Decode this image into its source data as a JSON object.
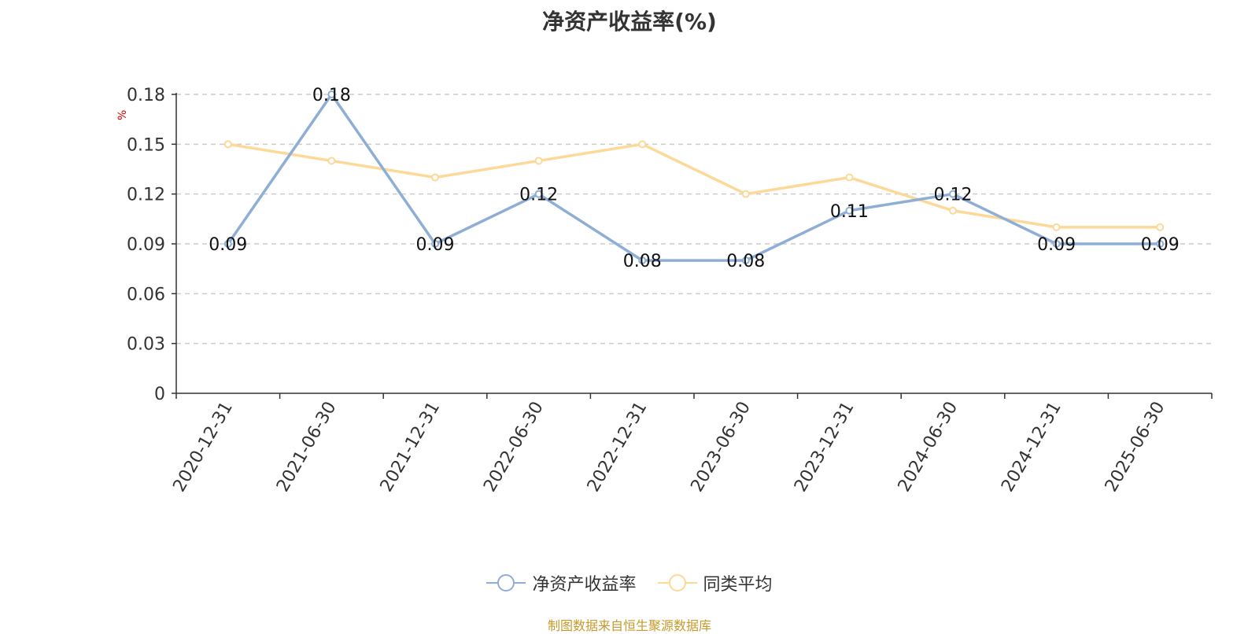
{
  "chart_data": {
    "type": "line",
    "title": "净资产收益率(%)",
    "unit_label": "%",
    "categories": [
      "2020-12-31",
      "2021-06-30",
      "2021-12-31",
      "2022-06-30",
      "2022-12-31",
      "2023-06-30",
      "2023-12-31",
      "2024-06-30",
      "2024-12-31",
      "2025-06-30"
    ],
    "series": [
      {
        "name": "净资产收益率",
        "color": "#8eaed6",
        "values": [
          0.09,
          0.18,
          0.09,
          0.12,
          0.08,
          0.08,
          0.11,
          0.12,
          0.09,
          0.09
        ],
        "data_labels": true
      },
      {
        "name": "同类平均",
        "color": "#fcd998",
        "values": [
          0.15,
          0.14,
          0.13,
          0.14,
          0.15,
          0.12,
          0.13,
          0.11,
          0.1,
          0.1
        ],
        "data_labels": false
      }
    ],
    "ylim": [
      0,
      0.18
    ],
    "yticks": [
      "0",
      "0.03",
      "0.06",
      "0.09",
      "0.12",
      "0.15",
      "0.18"
    ],
    "grid": true,
    "legend_position": "bottom"
  },
  "source_text": "制图数据来自恒生聚源数据库"
}
